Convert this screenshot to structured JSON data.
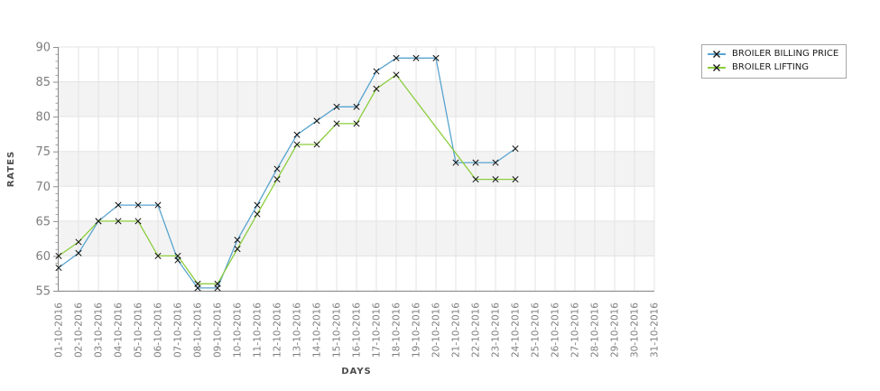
{
  "chart_data": {
    "type": "line",
    "title": "",
    "xlabel": "DAYS",
    "ylabel": "RATES",
    "ylim": [
      55,
      90
    ],
    "y_ticks": [
      55,
      60,
      65,
      70,
      75,
      80,
      85,
      90
    ],
    "y_minor_tick_step": 1,
    "grid": true,
    "shaded_bands": [
      [
        60,
        65
      ],
      [
        70,
        75
      ],
      [
        80,
        85
      ]
    ],
    "band_color": "#f3f3f3",
    "grid_color": "#e3e3e3",
    "axis_color": "#8c8c8c",
    "tick_label_color": "#7e7e7e",
    "axis_title_color": "#4d4d4d",
    "marker": "x",
    "marker_color": "#111111",
    "legend_position": "outside-top-right",
    "x_categories": [
      "01-10-2016",
      "02-10-2016",
      "03-10-2016",
      "04-10-2016",
      "05-10-2016",
      "06-10-2016",
      "07-10-2016",
      "08-10-2016",
      "09-10-2016",
      "10-10-2016",
      "11-10-2016",
      "12-10-2016",
      "13-10-2016",
      "14-10-2016",
      "15-10-2016",
      "16-10-2016",
      "17-10-2016",
      "18-10-2016",
      "19-10-2016",
      "20-10-2016",
      "21-10-2016",
      "22-10-2016",
      "23-10-2016",
      "24-10-2016",
      "25-10-2016",
      "26-10-2016",
      "27-10-2016",
      "28-10-2016",
      "29-10-2016",
      "30-10-2016",
      "31-10-2016"
    ],
    "series": [
      {
        "name": "BROILER BILLING PRICE",
        "color": "#58a4cf",
        "values": [
          58.3,
          60.4,
          65,
          67.3,
          67.3,
          67.3,
          59.4,
          55.4,
          55.4,
          62.3,
          67.3,
          72.5,
          77.4,
          79.4,
          81.4,
          81.4,
          86.5,
          88.4,
          88.4,
          88.4,
          73.4,
          73.4,
          73.4,
          75.4,
          null,
          null,
          null,
          null,
          null,
          null,
          null
        ]
      },
      {
        "name": "BROILER LIFTING",
        "color": "#8ccd3e",
        "values": [
          60,
          62,
          65,
          65,
          65,
          60,
          60,
          56,
          56,
          61,
          66,
          71,
          76,
          76,
          79,
          79,
          84,
          86,
          null,
          null,
          null,
          71,
          71,
          71,
          null,
          null,
          null,
          null,
          null,
          null,
          null
        ]
      }
    ]
  }
}
